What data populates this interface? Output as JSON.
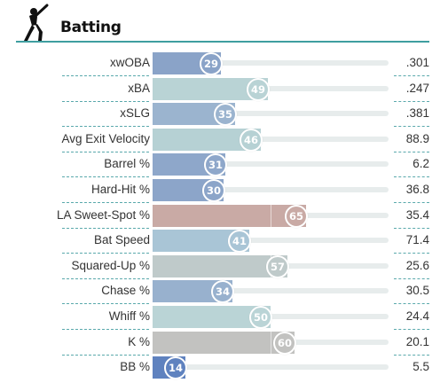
{
  "section": {
    "title": "Batting",
    "icon": "batter-silhouette-icon",
    "accent_color": "#3e9ea0"
  },
  "rows": [
    {
      "label": "xwOBA",
      "percentile": 29,
      "value": ".301",
      "color": "#8aa3c8"
    },
    {
      "label": "xBA",
      "percentile": 49,
      "value": ".247",
      "color": "#b9d3d5"
    },
    {
      "label": "xSLG",
      "percentile": 35,
      "value": ".381",
      "color": "#9bb4cf"
    },
    {
      "label": "Avg Exit Velocity",
      "percentile": 46,
      "value": "88.9",
      "color": "#b6d1d4"
    },
    {
      "label": "Barrel %",
      "percentile": 31,
      "value": "6.2",
      "color": "#8ea7ca"
    },
    {
      "label": "Hard-Hit %",
      "percentile": 30,
      "value": "36.8",
      "color": "#8ca5c9"
    },
    {
      "label": "LA Sweet-Spot %",
      "percentile": 65,
      "value": "35.4",
      "color": "#c9aaa5"
    },
    {
      "label": "Bat Speed",
      "percentile": 41,
      "value": "71.4",
      "color": "#a9c5d6"
    },
    {
      "label": "Squared-Up %",
      "percentile": 57,
      "value": "25.6",
      "color": "#bfcaca"
    },
    {
      "label": "Chase %",
      "percentile": 34,
      "value": "30.5",
      "color": "#98b1ce"
    },
    {
      "label": "Whiff %",
      "percentile": 50,
      "value": "24.4",
      "color": "#bad4d6"
    },
    {
      "label": "K %",
      "percentile": 60,
      "value": "20.1",
      "color": "#c2c2c0"
    },
    {
      "label": "BB %",
      "percentile": 14,
      "value": "5.5",
      "color": "#5f82bf"
    }
  ]
}
